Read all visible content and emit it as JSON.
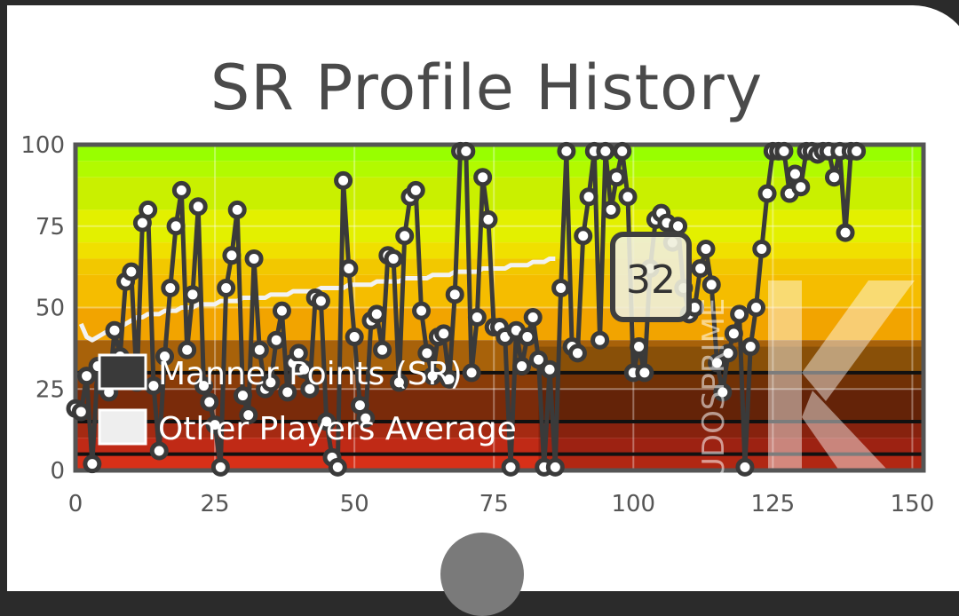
{
  "colors": {
    "plot_border": "#555555",
    "series_line": "#3a3a3a",
    "point_fill": "#ffffff",
    "average_line": "#f2f2f2"
  },
  "bands": [
    {
      "from": 95,
      "to": 100,
      "color": "#98ff00"
    },
    {
      "from": 90,
      "to": 95,
      "color": "#b2fa00"
    },
    {
      "from": 80,
      "to": 90,
      "color": "#c9f000"
    },
    {
      "from": 70,
      "to": 80,
      "color": "#e3f000"
    },
    {
      "from": 65,
      "to": 70,
      "color": "#f0e000"
    },
    {
      "from": 60,
      "to": 65,
      "color": "#f2c800"
    },
    {
      "from": 50,
      "to": 60,
      "color": "#f5bd00"
    },
    {
      "from": 40,
      "to": 50,
      "color": "#f2a400"
    },
    {
      "from": 30,
      "to": 40,
      "color": "#a8620a"
    },
    {
      "from": 25,
      "to": 30,
      "color": "#8a3c08"
    },
    {
      "from": 15,
      "to": 25,
      "color": "#7a2b0a"
    },
    {
      "from": 10,
      "to": 15,
      "color": "#a52a12"
    },
    {
      "from": 5,
      "to": 10,
      "color": "#c02a16"
    },
    {
      "from": 0,
      "to": 5,
      "color": "#d83018"
    }
  ],
  "chart_data": {
    "type": "line",
    "title": "SR Profile History",
    "xlim": [
      0,
      152
    ],
    "ylim": [
      0,
      100
    ],
    "x_ticks": [
      "0",
      "25",
      "50",
      "75",
      "100",
      "125",
      "150"
    ],
    "y_ticks": [
      "100",
      "75",
      "50",
      "25",
      "0"
    ],
    "grid": true,
    "legend_position": "bottom-left",
    "tooltip_value": "32",
    "series": [
      {
        "name": "Manner Points (SR)",
        "color": "#3a3a3a",
        "values": [
          19,
          18,
          29,
          2,
          32,
          26,
          24,
          43,
          35,
          58,
          61,
          27,
          76,
          80,
          26,
          6,
          35,
          56,
          75,
          86,
          37,
          54,
          81,
          26,
          21,
          14,
          1,
          56,
          66,
          80,
          23,
          17,
          65,
          37,
          25,
          27,
          40,
          49,
          24,
          33,
          36,
          31,
          25,
          53,
          52,
          15,
          4,
          1,
          89,
          62,
          41,
          20,
          16,
          46,
          48,
          37,
          66,
          65,
          27,
          72,
          84,
          86,
          49,
          36,
          29,
          41,
          42,
          28,
          54,
          98,
          98,
          30,
          47,
          90,
          77,
          44,
          44,
          41,
          1,
          43,
          32,
          41,
          47,
          34,
          1,
          31,
          1,
          56,
          98,
          38,
          36,
          72,
          84,
          98,
          40,
          98,
          80,
          90,
          98,
          84,
          30,
          38,
          30,
          62,
          77,
          79,
          76,
          70,
          75,
          56,
          48,
          50,
          62,
          68,
          57,
          33,
          24,
          36,
          42,
          48,
          1,
          38,
          50,
          68,
          85,
          98,
          98,
          98,
          85,
          91,
          87,
          98,
          98,
          97,
          98,
          98,
          90,
          98,
          73,
          98,
          98
        ]
      },
      {
        "name": "Other Players Average",
        "color": "#f2f2f2",
        "values": [
          45,
          41,
          40,
          41,
          42,
          43,
          44,
          44,
          45,
          46,
          47,
          47,
          48,
          48,
          48,
          49,
          49,
          49,
          50,
          50,
          50,
          51,
          51,
          51,
          51,
          52,
          52,
          52,
          52,
          53,
          53,
          53,
          53,
          53,
          54,
          54,
          54,
          54,
          55,
          55,
          55,
          55,
          55,
          56,
          56,
          56,
          56,
          56,
          57,
          57,
          57,
          57,
          57,
          58,
          58,
          58,
          58,
          58,
          59,
          59,
          59,
          59,
          59,
          60,
          60,
          60,
          60,
          61,
          61,
          61,
          61,
          61,
          62,
          62,
          62,
          62,
          62,
          63,
          63,
          63,
          63,
          64,
          64,
          64,
          65,
          65
        ]
      }
    ]
  },
  "watermark": "UDOSPRIME"
}
